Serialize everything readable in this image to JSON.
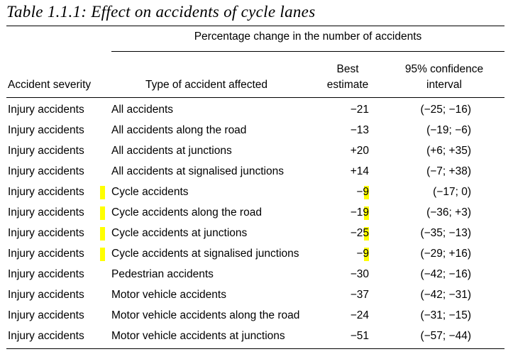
{
  "title": "Table 1.1.1:  Effect on accidents of cycle lanes",
  "headers": {
    "group": "Percentage change in the number of accidents",
    "severity": "Accident severity",
    "type": "Type of accident affected",
    "best_line1": "Best",
    "best_line2": "estimate",
    "ci_line1": "95% confidence",
    "ci_line2": "interval"
  },
  "highlight_color": "#ffff00",
  "rows": [
    {
      "severity": "Injury accidents",
      "type": "All accidents",
      "best": "−21",
      "ci": "(−25; −16)",
      "highlighted": false
    },
    {
      "severity": "Injury accidents",
      "type": "All accidents along the road",
      "best": "−13",
      "ci": "(−19; −6)",
      "highlighted": false
    },
    {
      "severity": "Injury accidents",
      "type": "All accidents at junctions",
      "best": "+20",
      "ci": "(+6; +35)",
      "highlighted": false
    },
    {
      "severity": "Injury accidents",
      "type": "All accidents at signalised junctions",
      "best": "+14",
      "ci": "(−7; +38)",
      "highlighted": false
    },
    {
      "severity": "Injury accidents",
      "type": "Cycle accidents",
      "best": "−9",
      "ci": "(−17; 0)",
      "highlighted": true
    },
    {
      "severity": "Injury accidents",
      "type": "Cycle accidents along the road",
      "best": "−19",
      "ci": "(−36; +3)",
      "highlighted": true
    },
    {
      "severity": "Injury accidents",
      "type": "Cycle accidents at junctions",
      "best": "−25",
      "ci": "(−35; −13)",
      "highlighted": true
    },
    {
      "severity": "Injury accidents",
      "type": "Cycle accidents at signalised junctions",
      "best": "−9",
      "ci": "(−29; +16)",
      "highlighted": true
    },
    {
      "severity": "Injury accidents",
      "type": "Pedestrian accidents",
      "best": "−30",
      "ci": "(−42; −16)",
      "highlighted": false
    },
    {
      "severity": "Injury accidents",
      "type": "Motor vehicle accidents",
      "best": "−37",
      "ci": "(−42; −31)",
      "highlighted": false
    },
    {
      "severity": "Injury accidents",
      "type": "Motor vehicle accidents along the road",
      "best": "−24",
      "ci": "(−31; −15)",
      "highlighted": false
    },
    {
      "severity": "Injury accidents",
      "type": "Motor vehicle accidents at junctions",
      "best": "−51",
      "ci": "(−57; −44)",
      "highlighted": false
    }
  ]
}
